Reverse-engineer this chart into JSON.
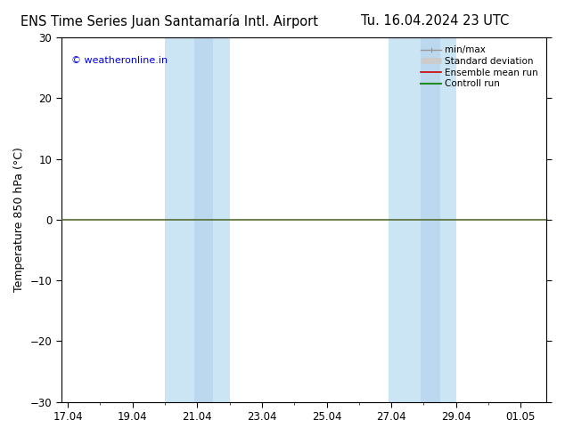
{
  "title_left": "ENS Time Series Juan Santamaría Intl. Airport",
  "title_right": "Tu. 16.04.2024 23 UTC",
  "ylabel": "Temperature 850 hPa (°C)",
  "watermark": "© weatheronline.in",
  "watermark_color": "#0000dd",
  "ylim": [
    -30,
    30
  ],
  "yticks": [
    -30,
    -20,
    -10,
    0,
    10,
    20,
    30
  ],
  "xtick_labels": [
    "17.04",
    "19.04",
    "21.04",
    "23.04",
    "25.04",
    "27.04",
    "29.04",
    "01.05"
  ],
  "xtick_positions": [
    0,
    2,
    4,
    6,
    8,
    10,
    12,
    14
  ],
  "xlim": [
    -0.2,
    14.8
  ],
  "shaded_bands": [
    {
      "x_start": 3.0,
      "x_end": 5.0,
      "color": "#cce5f5"
    },
    {
      "x_start": 3.9,
      "x_end": 4.5,
      "color": "#bcd8ee"
    },
    {
      "x_start": 9.9,
      "x_end": 12.0,
      "color": "#cce5f5"
    },
    {
      "x_start": 10.9,
      "x_end": 11.5,
      "color": "#bcd8ee"
    }
  ],
  "zero_line_color": "#556b2f",
  "zero_line_y": 0,
  "zero_line_lw": 1.2,
  "legend_items": [
    {
      "label": "min/max",
      "color": "#999999",
      "lw": 1.0,
      "type": "line_with_caps"
    },
    {
      "label": "Standard deviation",
      "color": "#cccccc",
      "lw": 5,
      "type": "thick"
    },
    {
      "label": "Ensemble mean run",
      "color": "#cc0000",
      "lw": 1.2,
      "type": "line"
    },
    {
      "label": "Controll run",
      "color": "#228b22",
      "lw": 1.5,
      "type": "line"
    }
  ],
  "bg_color": "#ffffff",
  "title_fontsize": 10.5,
  "axis_label_fontsize": 9,
  "tick_fontsize": 8.5,
  "legend_fontsize": 7.5
}
